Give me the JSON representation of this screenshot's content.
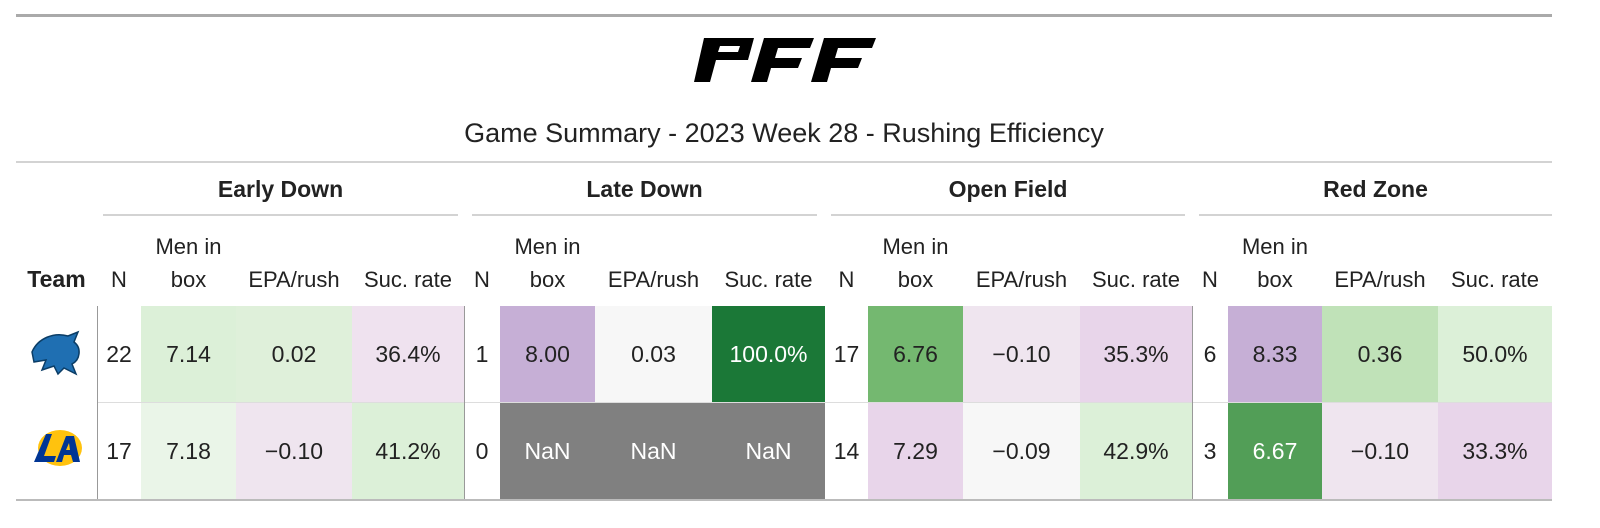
{
  "title": "Game Summary - 2023 Week 28 - Rushing Efficiency",
  "table": {
    "team_header": "Team",
    "groups": [
      {
        "label": "Early Down",
        "columns": [
          "N",
          "Men in box",
          "EPA/rush",
          "Suc. rate"
        ]
      },
      {
        "label": "Late Down",
        "columns": [
          "N",
          "Men in box",
          "EPA/rush",
          "Suc. rate"
        ]
      },
      {
        "label": "Open Field",
        "columns": [
          "N",
          "Men in box",
          "EPA/rush",
          "Suc. rate"
        ]
      },
      {
        "label": "Red Zone",
        "columns": [
          "N",
          "Men in box",
          "EPA/rush",
          "Suc. rate"
        ]
      }
    ],
    "rows": [
      {
        "cells": [
          "22",
          "7.14",
          "0.02",
          "36.4%",
          "1",
          "8.00",
          "0.03",
          "100.0%",
          "17",
          "6.76",
          "−0.10",
          "35.3%",
          "6",
          "8.33",
          "0.36",
          "50.0%"
        ],
        "colors": [
          "#ffffff",
          "#dcf0d8",
          "#dff0da",
          "#efe2ef",
          "#ffffff",
          "#c6afd6",
          "#f7f7f7",
          "#1b7837",
          "#ffffff",
          "#74b870",
          "#efe5ef",
          "#e8d5ea",
          "#ffffff",
          "#c6afd6",
          "#c0e2b8",
          "#dcf0d8"
        ]
      },
      {
        "cells": [
          "17",
          "7.18",
          "−0.10",
          "41.2%",
          "0",
          "NaN",
          "NaN",
          "NaN",
          "14",
          "7.29",
          "−0.09",
          "42.9%",
          "3",
          "6.67",
          "−0.10",
          "33.3%"
        ],
        "colors": [
          "#ffffff",
          "#eaf5e8",
          "#efe5ef",
          "#dcf0d8",
          "#ffffff",
          "#808080",
          "#808080",
          "#808080",
          "#ffffff",
          "#e8d5ea",
          "#f7f7f7",
          "#dcf0d8",
          "#ffffff",
          "#529e57",
          "#efe5ef",
          "#e8d5ea"
        ]
      }
    ]
  }
}
